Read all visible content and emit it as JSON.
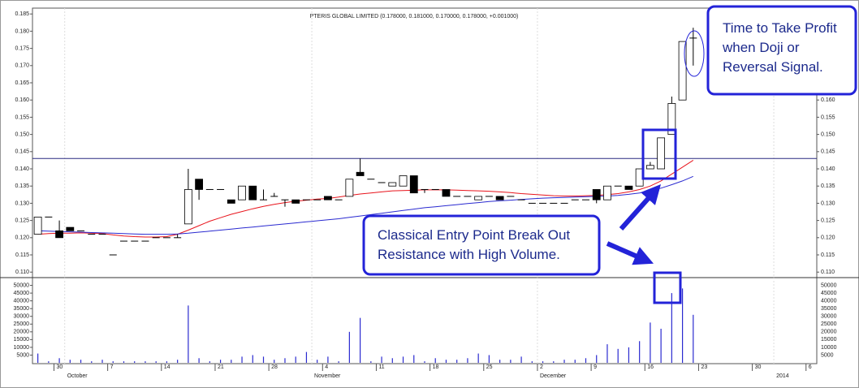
{
  "chart_data": {
    "type": "candlestick",
    "title": "PTERIS GLOBAL LIMITED (0.178000, 0.181000, 0.170000, 0.178000, +0.001000)",
    "categories": [
      null,
      null,
      "30",
      null,
      null,
      null,
      null,
      "7",
      null,
      null,
      null,
      null,
      "14",
      null,
      null,
      null,
      null,
      "21",
      null,
      null,
      null,
      null,
      "28",
      null,
      null,
      null,
      null,
      "4",
      null,
      null,
      null,
      null,
      "11",
      null,
      null,
      null,
      null,
      "18",
      null,
      null,
      null,
      null,
      "25",
      null,
      null,
      null,
      null,
      "2",
      null,
      null,
      null,
      null,
      "9",
      null,
      null,
      null,
      null,
      "16",
      null,
      null,
      null,
      null,
      "23",
      null,
      null,
      null,
      null,
      "30",
      null,
      null,
      null,
      null,
      "6"
    ],
    "month_labels": [
      null,
      null,
      null,
      "October",
      null,
      null,
      null,
      null,
      null,
      null,
      null,
      null,
      null,
      null,
      null,
      null,
      null,
      null,
      null,
      null,
      null,
      null,
      null,
      null,
      null,
      null,
      "November",
      null,
      null,
      null,
      null,
      null,
      null,
      null,
      null,
      null,
      null,
      null,
      null,
      null,
      null,
      null,
      null,
      null,
      null,
      null,
      null,
      "December",
      null,
      null,
      null,
      null,
      null,
      null,
      null,
      null,
      null,
      null,
      null,
      null,
      null,
      null,
      null,
      null,
      null,
      null,
      null,
      null,
      null,
      "2014",
      null,
      null,
      null
    ],
    "candles": {
      "open": [
        0.121,
        0.126,
        0.122,
        0.123,
        0.122,
        0.121,
        0.121,
        0.115,
        0.119,
        0.119,
        0.119,
        0.12,
        0.12,
        0.12,
        0.124,
        0.137,
        0.134,
        0.134,
        0.131,
        0.131,
        0.135,
        0.131,
        0.132,
        0.131,
        0.131,
        0.131,
        0.131,
        0.132,
        0.131,
        0.132,
        0.139,
        0.137,
        0.136,
        0.135,
        0.135,
        0.138,
        0.134,
        0.134,
        0.134,
        0.132,
        0.132,
        0.131,
        0.132,
        0.132,
        0.132,
        0.131,
        0.13,
        0.13,
        0.13,
        0.13,
        0.131,
        0.131,
        0.134,
        0.131,
        0.135,
        0.135,
        0.135,
        0.14,
        0.14,
        0.15,
        0.16,
        0.178,
        null,
        null,
        null,
        null,
        null,
        null,
        null,
        null,
        null,
        null,
        null
      ],
      "high": [
        0.126,
        0.126,
        0.125,
        0.123,
        0.122,
        0.121,
        0.121,
        0.115,
        0.119,
        0.119,
        0.119,
        0.12,
        0.12,
        0.121,
        0.14,
        0.137,
        0.134,
        0.134,
        0.131,
        0.135,
        0.135,
        0.134,
        0.133,
        0.131,
        0.131,
        0.131,
        0.131,
        0.132,
        0.131,
        0.137,
        0.143,
        0.137,
        0.136,
        0.136,
        0.138,
        0.138,
        0.134,
        0.134,
        0.134,
        0.132,
        0.132,
        0.132,
        0.132,
        0.132,
        0.132,
        0.131,
        0.13,
        0.13,
        0.13,
        0.13,
        0.131,
        0.131,
        0.134,
        0.135,
        0.135,
        0.135,
        0.14,
        0.142,
        0.149,
        0.161,
        0.177,
        0.181,
        null,
        null,
        null,
        null,
        null,
        null,
        null,
        null,
        null,
        null,
        null
      ],
      "low": [
        0.121,
        0.126,
        0.12,
        0.122,
        0.122,
        0.121,
        0.121,
        0.115,
        0.119,
        0.119,
        0.119,
        0.12,
        0.12,
        0.12,
        0.124,
        0.131,
        0.134,
        0.134,
        0.13,
        0.131,
        0.131,
        0.131,
        0.132,
        0.129,
        0.13,
        0.131,
        0.131,
        0.131,
        0.131,
        0.132,
        0.138,
        0.137,
        0.136,
        0.135,
        0.135,
        0.133,
        0.133,
        0.134,
        0.132,
        0.132,
        0.132,
        0.131,
        0.132,
        0.131,
        0.132,
        0.131,
        0.13,
        0.13,
        0.13,
        0.13,
        0.131,
        0.131,
        0.13,
        0.131,
        0.135,
        0.134,
        0.135,
        0.14,
        0.14,
        0.15,
        0.16,
        0.17,
        null,
        null,
        null,
        null,
        null,
        null,
        null,
        null,
        null,
        null,
        null
      ],
      "close": [
        0.126,
        0.126,
        0.12,
        0.122,
        0.122,
        0.121,
        0.121,
        0.115,
        0.119,
        0.119,
        0.119,
        0.12,
        0.12,
        0.12,
        0.134,
        0.134,
        0.134,
        0.134,
        0.13,
        0.135,
        0.131,
        0.131,
        0.132,
        0.131,
        0.13,
        0.131,
        0.131,
        0.131,
        0.131,
        0.137,
        0.138,
        0.137,
        0.136,
        0.136,
        0.138,
        0.133,
        0.134,
        0.134,
        0.132,
        0.132,
        0.132,
        0.132,
        0.132,
        0.131,
        0.132,
        0.131,
        0.13,
        0.13,
        0.13,
        0.13,
        0.131,
        0.131,
        0.131,
        0.135,
        0.135,
        0.134,
        0.14,
        0.141,
        0.149,
        0.159,
        0.177,
        0.178,
        null,
        null,
        null,
        null,
        null,
        null,
        null,
        null,
        null,
        null,
        null
      ]
    },
    "series": [
      {
        "color": "#e8141c",
        "values": [
          0.121,
          0.1212,
          0.1213,
          0.1213,
          0.1214,
          0.1213,
          0.1212,
          0.1208,
          0.1205,
          0.1203,
          0.1202,
          0.1202,
          0.1203,
          0.121,
          0.1222,
          0.1235,
          0.1248,
          0.1258,
          0.1268,
          0.1276,
          0.1284,
          0.1291,
          0.1297,
          0.1302,
          0.1306,
          0.1309,
          0.1312,
          0.1314,
          0.1318,
          0.1323,
          0.1327,
          0.133,
          0.1333,
          0.1336,
          0.1337,
          0.1338,
          0.1339,
          0.1339,
          0.1339,
          0.1338,
          0.1337,
          0.1336,
          0.1335,
          0.1333,
          0.1331,
          0.1328,
          0.1326,
          0.1324,
          0.1322,
          0.1321,
          0.1321,
          0.1322,
          0.1323,
          0.1325,
          0.1328,
          0.1333,
          0.134,
          0.135,
          0.1365,
          0.1385,
          0.1405,
          0.1425,
          null,
          null,
          null,
          null,
          null,
          null,
          null,
          null,
          null,
          null,
          null
        ]
      },
      {
        "color": "#2a2ad0",
        "values": [
          0.122,
          0.1219,
          0.1218,
          0.1217,
          0.1216,
          0.1215,
          0.1214,
          0.1213,
          0.1212,
          0.1211,
          0.121,
          0.121,
          0.121,
          0.1211,
          0.1213,
          0.1216,
          0.1219,
          0.1222,
          0.1225,
          0.1228,
          0.1231,
          0.1234,
          0.1237,
          0.124,
          0.1243,
          0.1246,
          0.1249,
          0.1252,
          0.1255,
          0.1259,
          0.1263,
          0.1267,
          0.1271,
          0.1275,
          0.1279,
          0.1283,
          0.1287,
          0.129,
          0.1293,
          0.1296,
          0.1299,
          0.1302,
          0.1305,
          0.1307,
          0.1309,
          0.1311,
          0.1313,
          0.1315,
          0.1316,
          0.1317,
          0.1318,
          0.1319,
          0.132,
          0.1321,
          0.1323,
          0.1326,
          0.133,
          0.1336,
          0.1344,
          0.1354,
          0.1365,
          0.1378,
          null,
          null,
          null,
          null,
          null,
          null,
          null,
          null,
          null,
          null,
          null
        ]
      }
    ],
    "resistance": 0.143,
    "resistance_color": "#2a2a80",
    "ylim": [
      0.1084,
      0.1867
    ],
    "yticks": [
      {
        "value": 0.11,
        "label": "0.110"
      },
      {
        "value": 0.115,
        "label": "0.115"
      },
      {
        "value": 0.12,
        "label": "0.120"
      },
      {
        "value": 0.125,
        "label": "0.125"
      },
      {
        "value": 0.13,
        "label": "0.130"
      },
      {
        "value": 0.135,
        "label": "0.135"
      },
      {
        "value": 0.14,
        "label": "0.140"
      },
      {
        "value": 0.145,
        "label": "0.145"
      },
      {
        "value": 0.15,
        "label": "0.150"
      },
      {
        "value": 0.155,
        "label": "0.155"
      },
      {
        "value": 0.16,
        "label": "0.160"
      },
      {
        "value": 0.165,
        "label": "0.165"
      },
      {
        "value": 0.17,
        "label": "0.170"
      },
      {
        "value": 0.175,
        "label": "0.175"
      },
      {
        "value": 0.18,
        "label": "0.180"
      },
      {
        "value": 0.185,
        "label": "0.185"
      }
    ],
    "volume": {
      "color": "#2a2ad0",
      "values": [
        6000,
        1000,
        3000,
        2000,
        2000,
        1000,
        2000,
        1000,
        1000,
        1000,
        1000,
        1000,
        1000,
        2000,
        37000,
        3000,
        1000,
        2000,
        2000,
        4000,
        5000,
        4000,
        2000,
        3000,
        4000,
        7000,
        2000,
        4000,
        1000,
        20000,
        29000,
        1000,
        4000,
        3000,
        4000,
        5000,
        1000,
        3000,
        2000,
        2000,
        3000,
        6000,
        5000,
        2000,
        2000,
        4000,
        1000,
        1000,
        1000,
        2000,
        2000,
        3000,
        5000,
        12000,
        9000,
        10000,
        14000,
        26000,
        22000,
        45000,
        48000,
        31000,
        null,
        null,
        null,
        null,
        null,
        null,
        null,
        null,
        null,
        null,
        null
      ],
      "ylim": [
        0,
        55000
      ],
      "yticks": [
        5000,
        10000,
        15000,
        20000,
        25000,
        30000,
        35000,
        40000,
        45000,
        50000
      ]
    },
    "annotations": [
      {
        "lines": [
          "Time to Take Profit",
          "when Doji or",
          "Reversal Signal."
        ]
      },
      {
        "lines": [
          "Classical Entry Point Break Out",
          "Resistance with High Volume."
        ]
      }
    ]
  }
}
